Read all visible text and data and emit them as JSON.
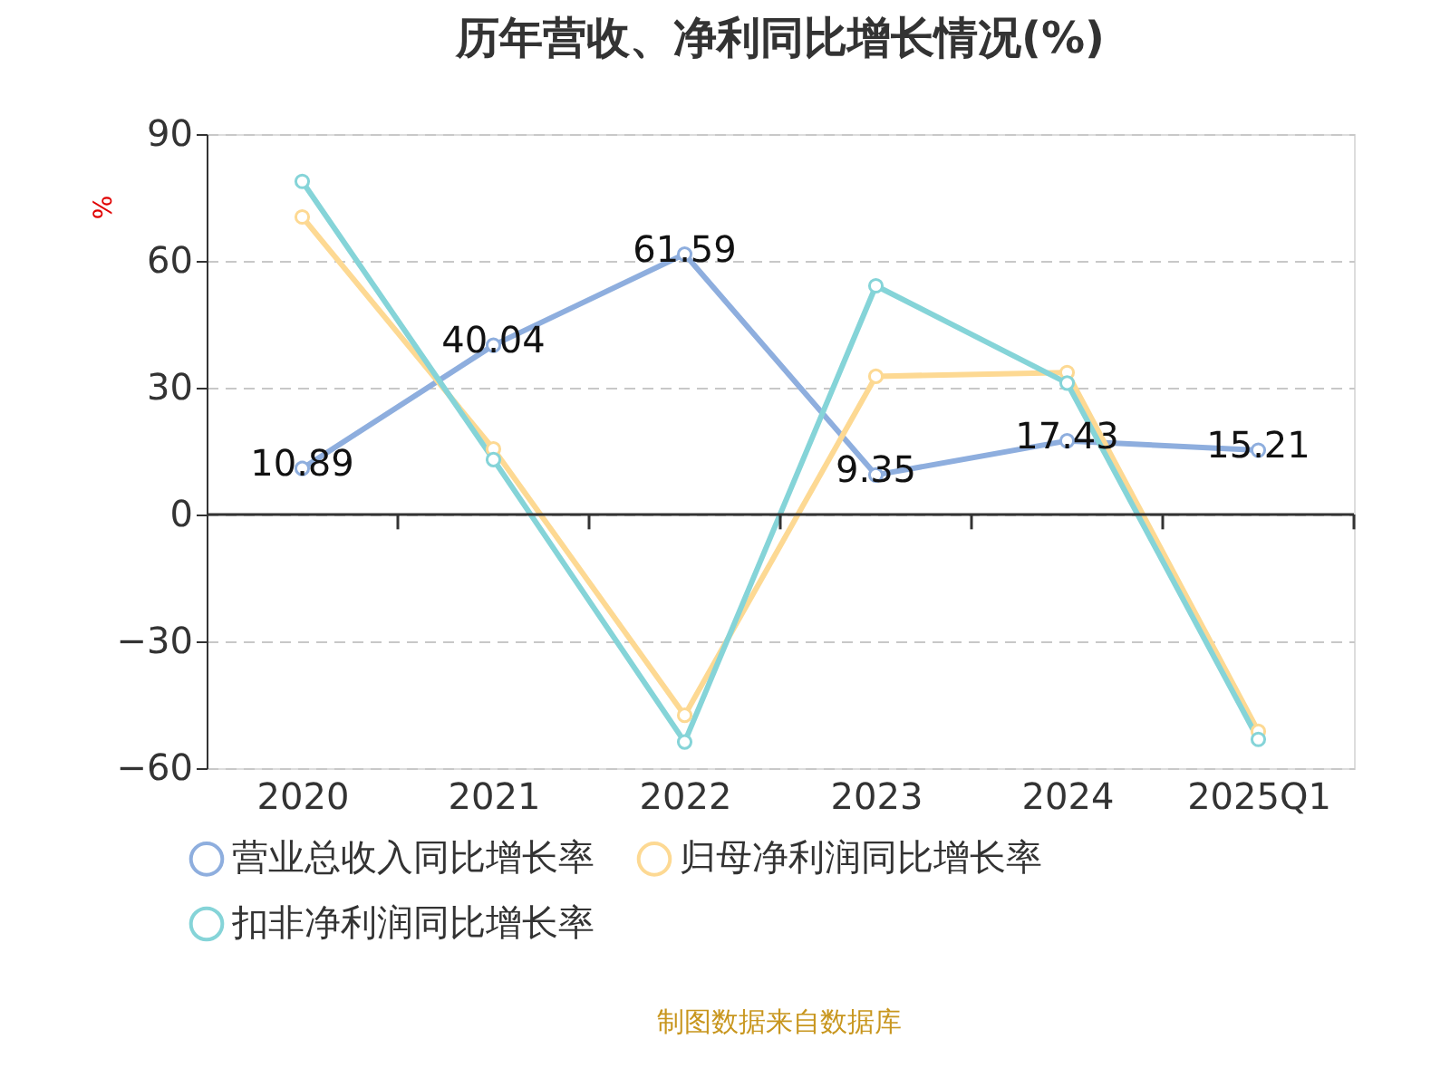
{
  "chart_data": {
    "type": "line",
    "title": "历年营收、净利同比增长情况(%)",
    "ylabel": "%",
    "categories": [
      "2020",
      "2021",
      "2022",
      "2023",
      "2024",
      "2025Q1"
    ],
    "series": [
      {
        "name": "营业总收入同比增长率",
        "color": "#8eaede",
        "values": [
          10.89,
          40.04,
          61.59,
          9.35,
          17.43,
          15.21
        ],
        "value_labels": [
          "10.89",
          "40.04",
          "61.59",
          "9.35",
          "17.43",
          "15.21"
        ]
      },
      {
        "name": "归母净利润同比增长率",
        "color": "#fdd993",
        "values": [
          70.4,
          15.5,
          -47.5,
          32.7,
          33.6,
          -51.3
        ]
      },
      {
        "name": "扣非净利润同比增长率",
        "color": "#85d4d8",
        "values": [
          78.8,
          13.0,
          -53.8,
          54.1,
          31.1,
          -53.2
        ]
      }
    ],
    "ylim": [
      -60,
      90
    ],
    "yticks": [
      -60,
      -30,
      0,
      30,
      60,
      90
    ],
    "grid": "y",
    "legend": "bottom",
    "marker": "circle",
    "line_style": "solid",
    "annotations": [
      "制图数据来自数据库"
    ]
  }
}
